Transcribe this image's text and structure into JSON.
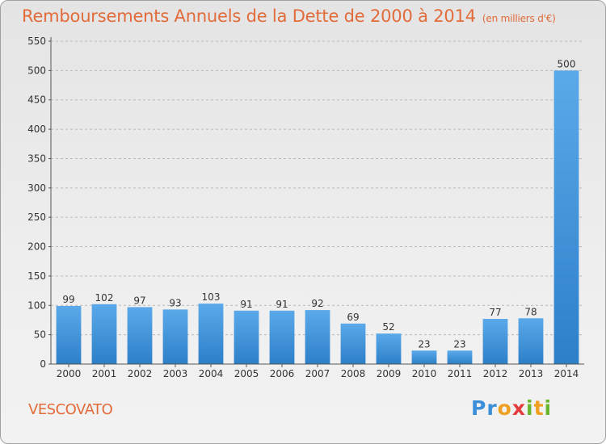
{
  "chart_data": {
    "type": "bar",
    "title": "Remboursements Annuels de la Dette de 2000 à 2014",
    "subtitle": "(en milliers d'€)",
    "categories": [
      "2000",
      "2001",
      "2002",
      "2003",
      "2004",
      "2005",
      "2006",
      "2007",
      "2008",
      "2009",
      "2010",
      "2011",
      "2012",
      "2013",
      "2014"
    ],
    "values": [
      99,
      102,
      97,
      93,
      103,
      91,
      91,
      92,
      69,
      52,
      23,
      23,
      77,
      78,
      500
    ],
    "ylim": [
      0,
      550
    ],
    "yticks": [
      0,
      50,
      100,
      150,
      200,
      250,
      300,
      350,
      400,
      450,
      500,
      550
    ],
    "grid": true,
    "bar_color": "#3a8fd8"
  },
  "commune": "VESCOVATO",
  "logo": {
    "text": "Proxiti"
  }
}
